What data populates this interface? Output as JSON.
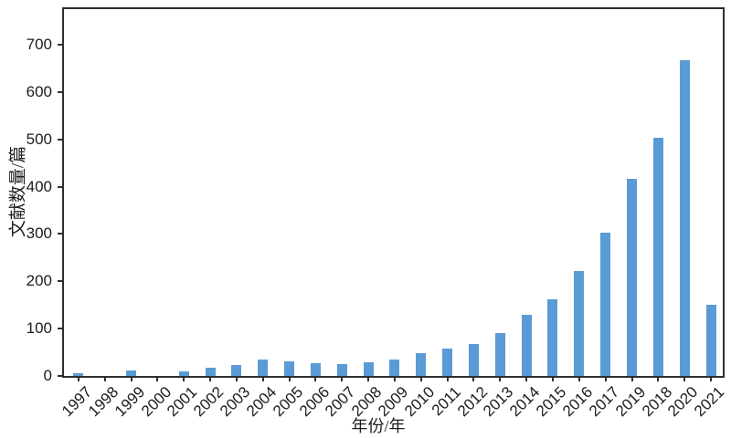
{
  "colors": {
    "background": "#ffffff",
    "bar": "#5B9BD5",
    "axis": "#2f2f2f",
    "text": "#1c1c1c"
  },
  "chart_data": {
    "type": "bar",
    "title": "",
    "xlabel": "年份/年",
    "ylabel": "文献数量/篇",
    "categories": [
      "1997",
      "1998",
      "1999",
      "2000",
      "2001",
      "2002",
      "2003",
      "2004",
      "2005",
      "2006",
      "2007",
      "2008",
      "2009",
      "2010",
      "2011",
      "2012",
      "2013",
      "2014",
      "2015",
      "2016",
      "2017",
      "2019",
      "2018",
      "2020",
      "2021"
    ],
    "values": [
      5,
      0,
      12,
      0,
      10,
      17,
      23,
      35,
      31,
      27,
      25,
      29,
      35,
      49,
      58,
      68,
      91,
      130,
      162,
      222,
      303,
      417,
      503,
      667,
      151
    ],
    "y_ticks": [
      0,
      100,
      200,
      300,
      400,
      500,
      600,
      700
    ],
    "ylim": [
      0,
      775
    ],
    "grid": false,
    "legend_position": "none",
    "bar_color": "#5B9BD5"
  }
}
